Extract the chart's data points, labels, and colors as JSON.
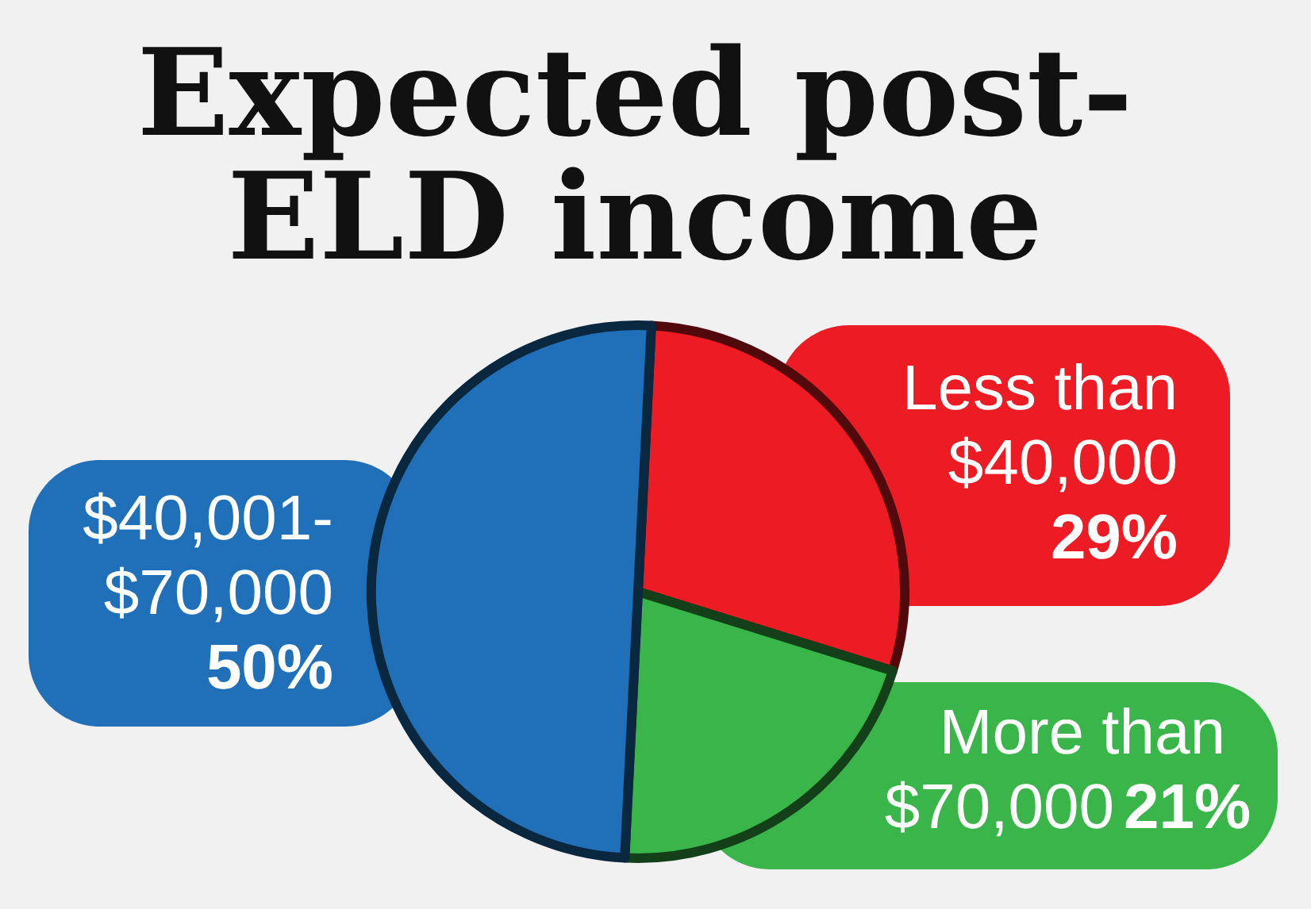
{
  "chart_data": {
    "type": "pie",
    "title": "Expected post-ELD income",
    "categories": [
      "Less than $40,000",
      "More than $70,000",
      "$40,001-$70,000"
    ],
    "values": [
      29,
      21,
      50
    ],
    "colors": [
      "#ed1c24",
      "#39b54a",
      "#1f70b8"
    ],
    "value_labels": [
      "29%",
      "21%",
      "50%"
    ]
  }
}
